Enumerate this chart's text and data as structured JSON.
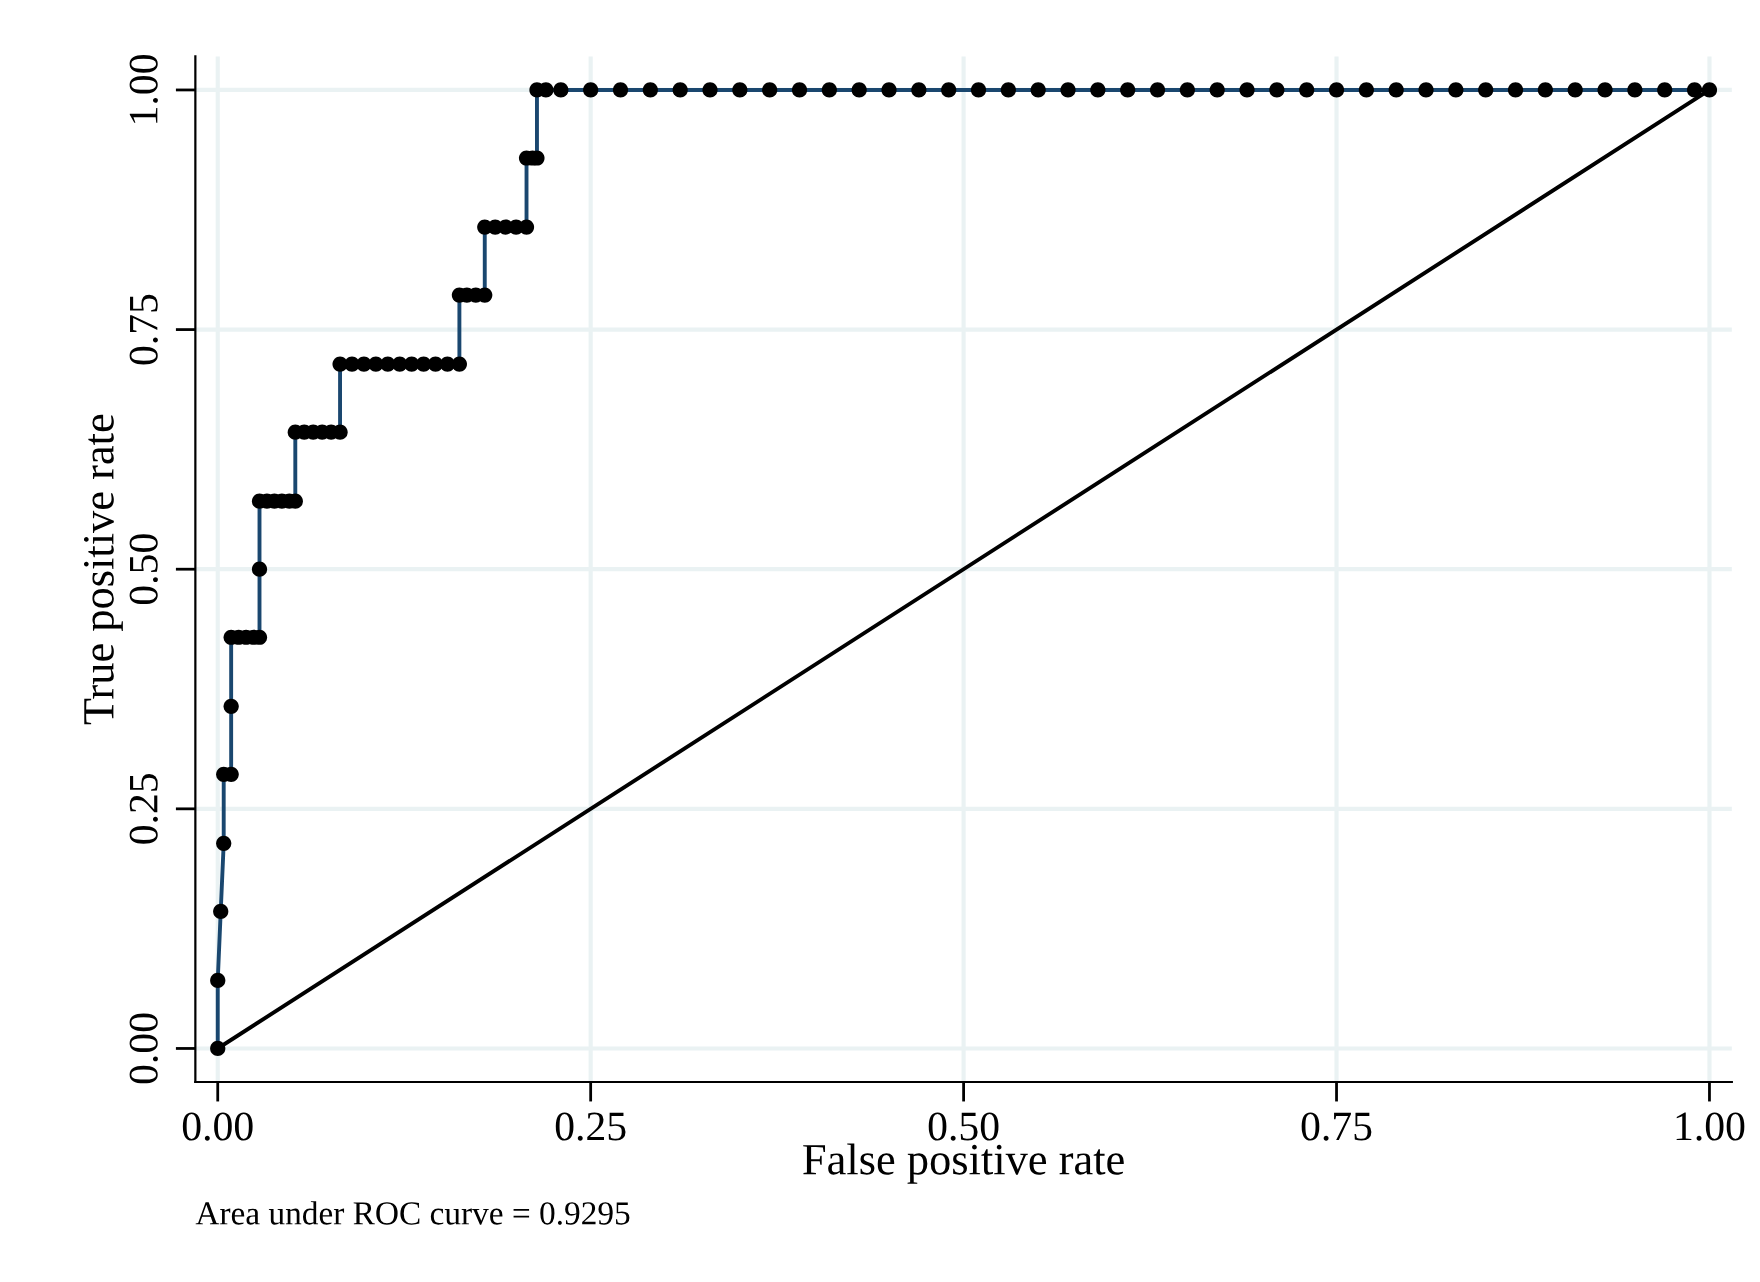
{
  "chart_data": {
    "type": "line",
    "xlabel": "False positive rate",
    "ylabel": "True positive rate",
    "annotations": [
      "Area under ROC curve = 0.9295"
    ],
    "xlim": [
      -0.015,
      1.015
    ],
    "ylim": [
      -0.035,
      1.035
    ],
    "xticks": [
      {
        "value": 0,
        "label": "0.00"
      },
      {
        "value": 0.25,
        "label": "0.25"
      },
      {
        "value": 0.5,
        "label": "0.50"
      },
      {
        "value": 0.75,
        "label": "0.75"
      },
      {
        "value": 1,
        "label": "1.00"
      }
    ],
    "yticks": [
      {
        "value": 0,
        "label": "0.00"
      },
      {
        "value": 0.25,
        "label": "0.25"
      },
      {
        "value": 0.5,
        "label": "0.50"
      },
      {
        "value": 0.75,
        "label": "0.75"
      },
      {
        "value": 1,
        "label": "1.00"
      }
    ],
    "grid": true,
    "series": [
      {
        "marker": "none",
        "color": "#1a476f",
        "x": [
          0,
          0,
          0.002,
          0.004,
          0.004,
          0.009,
          0.009,
          0.009,
          0.014,
          0.019,
          0.024,
          0.028,
          0.028,
          0.028,
          0.033,
          0.038,
          0.043,
          0.048,
          0.052,
          0.052,
          0.058,
          0.064,
          0.07,
          0.076,
          0.082,
          0.082,
          0.09,
          0.098,
          0.106,
          0.114,
          0.122,
          0.13,
          0.138,
          0.146,
          0.154,
          0.162,
          0.162,
          0.167,
          0.173,
          0.179,
          0.179,
          0.186,
          0.193,
          0.2,
          0.207,
          0.207,
          0.211,
          0.214,
          0.214,
          0.22,
          0.23,
          0.25,
          0.27,
          0.29,
          0.31,
          0.33,
          0.35,
          0.37,
          0.39,
          0.41,
          0.43,
          0.45,
          0.47,
          0.49,
          0.51,
          0.53,
          0.55,
          0.57,
          0.59,
          0.61,
          0.63,
          0.65,
          0.67,
          0.69,
          0.71,
          0.73,
          0.75,
          0.77,
          0.79,
          0.81,
          0.83,
          0.85,
          0.87,
          0.89,
          0.91,
          0.93,
          0.95,
          0.97,
          0.99,
          1.0
        ],
        "values": [
          0,
          0.071,
          0.143,
          0.214,
          0.286,
          0.286,
          0.357,
          0.429,
          0.429,
          0.429,
          0.429,
          0.429,
          0.5,
          0.571,
          0.571,
          0.571,
          0.571,
          0.571,
          0.571,
          0.643,
          0.643,
          0.643,
          0.643,
          0.643,
          0.643,
          0.714,
          0.714,
          0.714,
          0.714,
          0.714,
          0.714,
          0.714,
          0.714,
          0.714,
          0.714,
          0.714,
          0.786,
          0.786,
          0.786,
          0.786,
          0.857,
          0.857,
          0.857,
          0.857,
          0.857,
          0.929,
          0.929,
          0.929,
          1,
          1,
          1,
          1,
          1,
          1,
          1,
          1,
          1,
          1,
          1,
          1,
          1,
          1,
          1,
          1,
          1,
          1,
          1,
          1,
          1,
          1,
          1,
          1,
          1,
          1,
          1,
          1,
          1,
          1,
          1,
          1,
          1,
          1,
          1,
          1,
          1,
          1,
          1,
          1,
          1,
          1
        ]
      },
      {
        "type": "scatter",
        "marker": "circle",
        "color": "#000000",
        "x": [
          0,
          0,
          0.002,
          0.004,
          0.004,
          0.009,
          0.009,
          0.009,
          0.014,
          0.019,
          0.024,
          0.028,
          0.028,
          0.028,
          0.033,
          0.038,
          0.043,
          0.048,
          0.052,
          0.052,
          0.058,
          0.064,
          0.07,
          0.076,
          0.082,
          0.082,
          0.09,
          0.098,
          0.106,
          0.114,
          0.122,
          0.13,
          0.138,
          0.146,
          0.154,
          0.162,
          0.162,
          0.167,
          0.173,
          0.179,
          0.179,
          0.186,
          0.193,
          0.2,
          0.207,
          0.207,
          0.211,
          0.214,
          0.214,
          0.22,
          0.23,
          0.25,
          0.27,
          0.29,
          0.31,
          0.33,
          0.35,
          0.37,
          0.39,
          0.41,
          0.43,
          0.45,
          0.47,
          0.49,
          0.51,
          0.53,
          0.55,
          0.57,
          0.59,
          0.61,
          0.63,
          0.65,
          0.67,
          0.69,
          0.71,
          0.73,
          0.75,
          0.77,
          0.79,
          0.81,
          0.83,
          0.85,
          0.87,
          0.89,
          0.91,
          0.93,
          0.95,
          0.97,
          0.99,
          1.0
        ],
        "values": [
          0,
          0.071,
          0.143,
          0.214,
          0.286,
          0.286,
          0.357,
          0.429,
          0.429,
          0.429,
          0.429,
          0.429,
          0.5,
          0.571,
          0.571,
          0.571,
          0.571,
          0.571,
          0.571,
          0.643,
          0.643,
          0.643,
          0.643,
          0.643,
          0.643,
          0.714,
          0.714,
          0.714,
          0.714,
          0.714,
          0.714,
          0.714,
          0.714,
          0.714,
          0.714,
          0.714,
          0.786,
          0.786,
          0.786,
          0.786,
          0.857,
          0.857,
          0.857,
          0.857,
          0.857,
          0.929,
          0.929,
          0.929,
          1,
          1,
          1,
          1,
          1,
          1,
          1,
          1,
          1,
          1,
          1,
          1,
          1,
          1,
          1,
          1,
          1,
          1,
          1,
          1,
          1,
          1,
          1,
          1,
          1,
          1,
          1,
          1,
          1,
          1,
          1,
          1,
          1,
          1,
          1,
          1,
          1,
          1,
          1,
          1,
          1,
          1
        ]
      },
      {
        "marker": "none",
        "color": "#000000",
        "x": [
          0,
          1
        ],
        "values": [
          0,
          1
        ]
      }
    ]
  }
}
